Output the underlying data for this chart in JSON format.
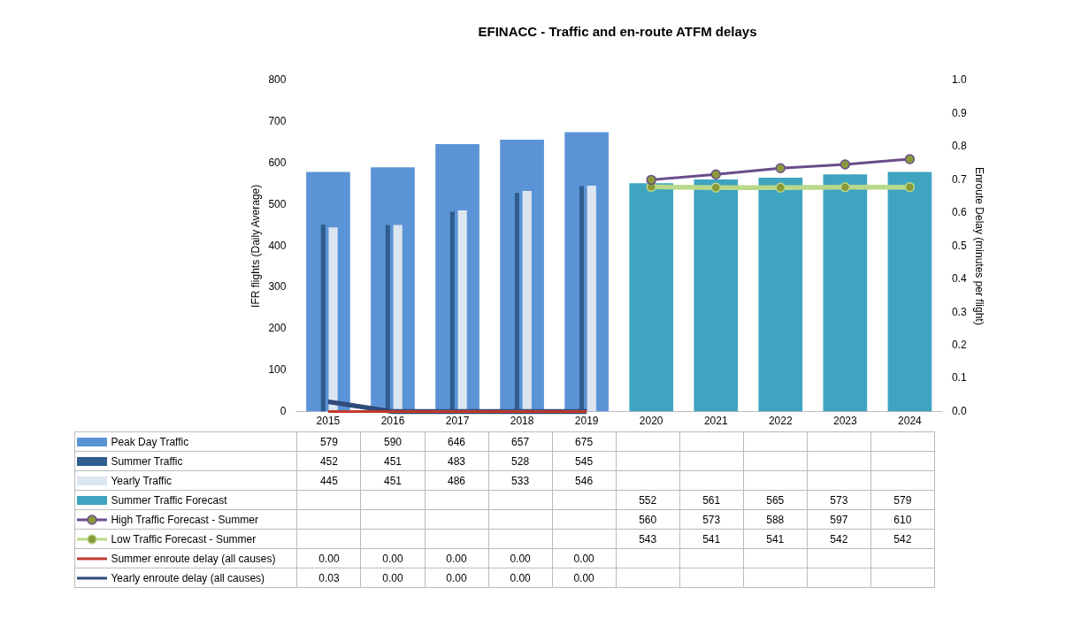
{
  "chart_data": {
    "type": "bar",
    "title": "EFINACC - Traffic and en-route ATFM delays",
    "ylabel": "IFR flights (Daily Average)",
    "y2label": "Enroute Delay (minutes per flight)",
    "categories": [
      "2015",
      "2016",
      "2017",
      "2018",
      "2019",
      "2020",
      "2021",
      "2022",
      "2023",
      "2024"
    ],
    "ylim": [
      0,
      800
    ],
    "yticks": [
      0,
      100,
      200,
      300,
      400,
      500,
      600,
      700,
      800
    ],
    "y2lim": [
      0,
      1
    ],
    "y2ticks": [
      {
        "value": 0,
        "label": "0.0"
      },
      {
        "value": 0.1,
        "label": "0.1"
      },
      {
        "value": 0.2,
        "label": "0.2"
      },
      {
        "value": 0.3,
        "label": "0.3"
      },
      {
        "value": 0.4,
        "label": "0.4"
      },
      {
        "value": 0.5,
        "label": "0.5"
      },
      {
        "value": 0.6,
        "label": "0.6"
      },
      {
        "value": 0.7,
        "label": "0.7"
      },
      {
        "value": 0.8,
        "label": "0.8"
      },
      {
        "value": 0.9,
        "label": "0.9"
      },
      {
        "value": 1,
        "label": "1.0"
      }
    ],
    "legend": "bottom",
    "data_labels": true,
    "series": [
      {
        "name": "Peak Day Traffic",
        "color": "#5b94d6",
        "values": [
          579,
          590,
          646,
          657,
          675,
          null,
          null,
          null,
          null,
          null
        ]
      },
      {
        "name": "Summer Traffic",
        "color": "#2e5d8e",
        "values": [
          452,
          451,
          483,
          528,
          545,
          null,
          null,
          null,
          null,
          null
        ]
      },
      {
        "name": "Yearly Traffic",
        "color": "#dce6f2",
        "values": [
          445,
          451,
          486,
          533,
          546,
          null,
          null,
          null,
          null,
          null
        ]
      },
      {
        "name": "Summer Traffic Forecast",
        "color": "#3ea4c0",
        "values": [
          null,
          null,
          null,
          null,
          null,
          552,
          561,
          565,
          573,
          579
        ]
      },
      {
        "name": "High Traffic Forecast - Summer",
        "type": "line",
        "color": "#6a4c8c",
        "marker": "circle",
        "values": [
          null,
          null,
          null,
          null,
          null,
          560,
          573,
          588,
          597,
          610
        ]
      },
      {
        "name": "Low Traffic Forecast - Summer",
        "type": "line",
        "color": "#b8d98b",
        "marker": "circle",
        "values": [
          null,
          null,
          null,
          null,
          null,
          543,
          541,
          541,
          542,
          542
        ]
      },
      {
        "name": "Summer enroute delay (all causes)",
        "type": "line",
        "axis": "y2",
        "color": "#c0392b",
        "values": [
          0,
          0,
          0,
          0,
          0,
          null,
          null,
          null,
          null,
          null
        ],
        "value_labels": [
          "0.00",
          "0.00",
          "0.00",
          "0.00",
          "0.00",
          null,
          null,
          null,
          null,
          null
        ]
      },
      {
        "name": "Yearly enroute delay (all causes)",
        "type": "line",
        "axis": "y2",
        "color": "#2e4a7a",
        "values": [
          0.03,
          0,
          0,
          0,
          0,
          null,
          null,
          null,
          null,
          null
        ],
        "value_labels": [
          "0.03",
          "0.00",
          "0.00",
          "0.00",
          "0.00",
          null,
          null,
          null,
          null,
          null
        ]
      }
    ]
  }
}
